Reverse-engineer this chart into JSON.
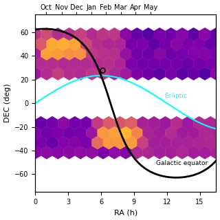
{
  "xlabel_bottom": "RA (h)",
  "ylabel": "DEC (deg)",
  "xlim": [
    0,
    16.5
  ],
  "ylim": [
    -75,
    75
  ],
  "ra_ticks": [
    0,
    3,
    6,
    9,
    12,
    15
  ],
  "dec_ticks": [
    -60,
    -40,
    -20,
    0,
    20,
    40,
    60
  ],
  "months": [
    "Oct",
    "Nov",
    "Dec",
    "Jan",
    "Feb",
    "Mar",
    "Apr",
    "May"
  ],
  "month_positions": [
    1.0,
    2.4,
    3.75,
    5.1,
    6.45,
    7.8,
    9.15,
    10.5
  ],
  "band1_dec_min": 27,
  "band1_dec_max": 57,
  "band2_dec_min": -16,
  "band2_dec_max": -42,
  "marker_ra": 6.1,
  "marker_dec": 28,
  "ecliptic_label_ra": 11.8,
  "ecliptic_label_dec": 5,
  "galactic_label_ra": 11.0,
  "galactic_label_dec": -52,
  "background_color": "white",
  "band_cmap": "plasma",
  "hexbin_gridsize": 16
}
